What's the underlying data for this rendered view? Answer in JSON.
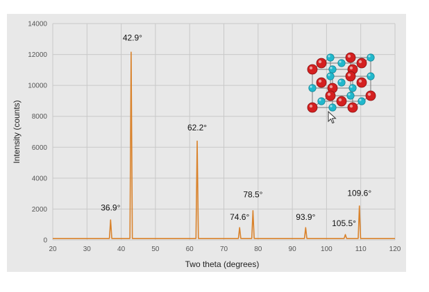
{
  "chart_data": {
    "type": "line",
    "title": "",
    "xlabel": "Two theta (degrees)",
    "ylabel": "Intensity (counts)",
    "xlim": [
      20,
      120
    ],
    "ylim": [
      0,
      14000
    ],
    "x_ticks": [
      "20",
      "30",
      "40",
      "50",
      "60",
      "70",
      "80",
      "90",
      "100",
      "110",
      "120"
    ],
    "y_ticks": [
      "0",
      "2000",
      "4000",
      "6000",
      "8000",
      "10000",
      "12000",
      "14000"
    ],
    "grid": true,
    "baseline": 100,
    "series": [
      {
        "color": "#d9822b",
        "peaks": [
          {
            "x": 36.9,
            "y": 1300,
            "label": "36.9°"
          },
          {
            "x": 42.9,
            "y": 12150,
            "label": "42.9°"
          },
          {
            "x": 62.2,
            "y": 6400,
            "label": "62.2°"
          },
          {
            "x": 74.6,
            "y": 800,
            "label": "74.6°"
          },
          {
            "x": 78.5,
            "y": 1900,
            "label": "78.5°"
          },
          {
            "x": 93.9,
            "y": 800,
            "label": "93.9°"
          },
          {
            "x": 105.5,
            "y": 350,
            "label": "105.5°"
          },
          {
            "x": 109.6,
            "y": 2200,
            "label": "109.6°"
          }
        ]
      }
    ]
  },
  "colors": {
    "background": "#e8e8e8",
    "grid": "#c8c8c8",
    "line": "#d9822b",
    "atom_red": "#d42020",
    "atom_cyan": "#22b8cc"
  },
  "inset": {
    "icon": "rock-salt-crystal-structure-icon"
  },
  "cursor": {
    "icon": "mouse-pointer-icon"
  }
}
